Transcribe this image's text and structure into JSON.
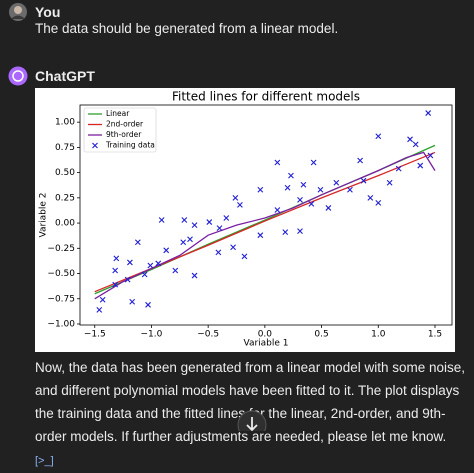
{
  "user_message": {
    "author": "You",
    "text": "The data should be generated from a linear model."
  },
  "assistant_message": {
    "author": "ChatGPT",
    "text": "Now, the data has been generated from a linear model with some noise, and different polynomial models have been fitted to it. The plot displays the training data and the fitted lines for the linear, 2nd-order, and 9th-order models. If further adjustments are needed, please let me know.",
    "code_icon": "[>_]"
  },
  "chart_data": {
    "type": "line",
    "title": "Fitted lines for different models",
    "x_label": "Variable 1",
    "y_label": "Variable 2",
    "xlim": [
      -1.63,
      1.65
    ],
    "ylim": [
      -1.01,
      1.17
    ],
    "xticks": [
      {
        "value": -1.5,
        "label": "−1.5"
      },
      {
        "value": -1.0,
        "label": "−1.0"
      },
      {
        "value": -0.5,
        "label": "−0.5"
      },
      {
        "value": 0,
        "label": "0.0"
      },
      {
        "value": 0.5,
        "label": "0.5"
      },
      {
        "value": 1.0,
        "label": "1.0"
      },
      {
        "value": 1.5,
        "label": "1.5"
      }
    ],
    "yticks": [
      {
        "value": -1.0,
        "label": "−1.00"
      },
      {
        "value": -0.75,
        "label": "−0.75"
      },
      {
        "value": -0.5,
        "label": "−0.50"
      },
      {
        "value": -0.25,
        "label": "−0.25"
      },
      {
        "value": 0,
        "label": "0.00"
      },
      {
        "value": 0.25,
        "label": "0.25"
      },
      {
        "value": 0.5,
        "label": "0.50"
      },
      {
        "value": 0.75,
        "label": "0.75"
      },
      {
        "value": 1.0,
        "label": "1.00"
      }
    ],
    "legend": "upper left",
    "grid": false,
    "series": [
      {
        "name": "Linear",
        "color": "#2ca02c",
        "x": [
          -1.5,
          -1,
          -0.5,
          0,
          0.5,
          1,
          1.5
        ],
        "values": [
          -0.7,
          -0.46,
          -0.21,
          0.03,
          0.28,
          0.52,
          0.77
        ]
      },
      {
        "name": "2nd-order",
        "color": "#d62728",
        "x": [
          -1.5,
          -1,
          -0.5,
          0,
          0.5,
          1,
          1.5
        ],
        "values": [
          -0.68,
          -0.45,
          -0.22,
          0.02,
          0.25,
          0.47,
          0.7
        ]
      },
      {
        "name": "9th-order",
        "color": "#7b1fa2",
        "x": [
          -1.5,
          -1.25,
          -1,
          -0.75,
          -0.5,
          -0.25,
          0,
          0.25,
          0.5,
          0.75,
          1,
          1.25,
          1.4,
          1.5
        ],
        "values": [
          -0.75,
          -0.58,
          -0.45,
          -0.32,
          -0.12,
          -0.02,
          0.05,
          0.15,
          0.28,
          0.4,
          0.52,
          0.65,
          0.7,
          0.52
        ]
      },
      {
        "name": "Training data",
        "color": "#1f1fd6",
        "marker": "x",
        "x": [
          1.44,
          1.0,
          1.28,
          1.33,
          1.46,
          1.37,
          1.18,
          0.84,
          0.87,
          1.0,
          0.75,
          0.63,
          0.43,
          0.49,
          0.34,
          0.23,
          0.31,
          0.2,
          0.41,
          0.11,
          0.11,
          -0.04,
          -0.22,
          -0.26,
          -0.34,
          -0.4,
          -0.28,
          -0.49,
          -0.41,
          -0.62,
          -0.66,
          -0.71,
          -0.72,
          -0.91,
          -0.87,
          -0.94,
          -0.79,
          -0.62,
          -1.01,
          -1.06,
          -1.12,
          -1.19,
          -1.31,
          -1.32,
          -1.21,
          -1.32,
          -1.43,
          -1.46,
          -1.17,
          -1.03,
          0.18,
          0.31,
          -0.18,
          -0.04,
          0.56,
          0.93,
          1.1
        ],
        "values": [
          1.09,
          0.86,
          0.83,
          0.78,
          0.67,
          0.57,
          0.54,
          0.62,
          0.42,
          0.2,
          0.33,
          0.4,
          0.6,
          0.33,
          0.38,
          0.47,
          0.23,
          0.35,
          0.19,
          0.6,
          0.13,
          0.33,
          0.18,
          0.25,
          0.05,
          -0.05,
          -0.24,
          0.01,
          -0.29,
          -0.02,
          -0.16,
          0.03,
          -0.19,
          0.03,
          -0.27,
          -0.4,
          -0.47,
          -0.52,
          -0.42,
          -0.51,
          -0.19,
          -0.39,
          -0.35,
          -0.47,
          -0.56,
          -0.61,
          -0.76,
          -0.86,
          -0.78,
          -0.81,
          -0.09,
          -0.08,
          -0.33,
          -0.12,
          0.15,
          0.25,
          0.4
        ]
      }
    ]
  }
}
